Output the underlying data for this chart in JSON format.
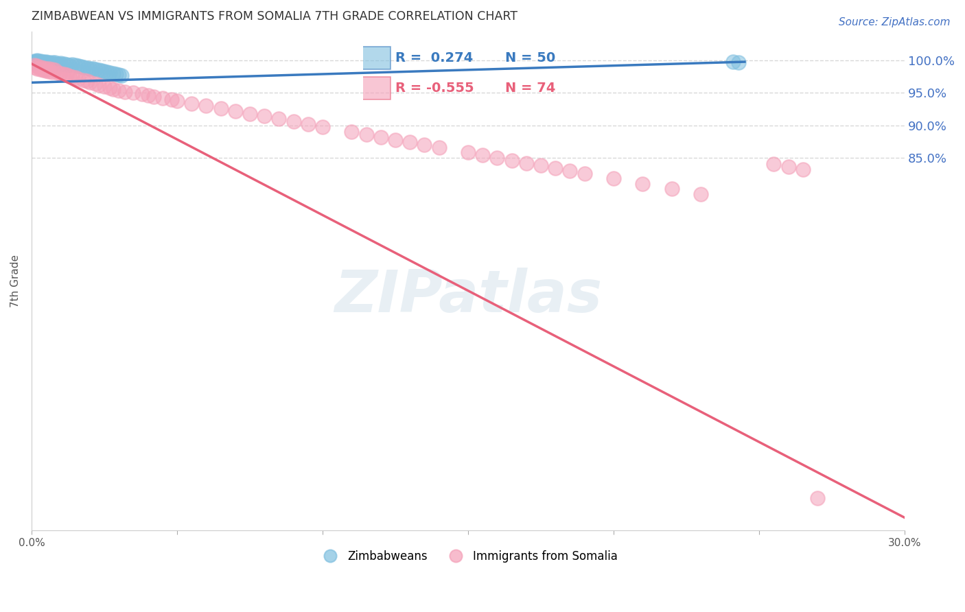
{
  "title": "ZIMBABWEAN VS IMMIGRANTS FROM SOMALIA 7TH GRADE CORRELATION CHART",
  "source": "Source: ZipAtlas.com",
  "ylabel": "7th Grade",
  "ytick_labels": [
    "100.0%",
    "95.0%",
    "90.0%",
    "85.0%"
  ],
  "ytick_values": [
    1.0,
    0.95,
    0.9,
    0.85
  ],
  "xmin": 0.0,
  "xmax": 0.3,
  "ymin": 0.275,
  "ymax": 1.045,
  "blue_color": "#7fbfdf",
  "pink_color": "#f4a0b8",
  "blue_line_color": "#3a7abf",
  "pink_line_color": "#e8607a",
  "R_blue": 0.274,
  "N_blue": 50,
  "R_pink": -0.555,
  "N_pink": 74,
  "blue_line_x": [
    0.0,
    0.245
  ],
  "blue_line_y": [
    0.966,
    0.998
  ],
  "pink_line_x": [
    0.0,
    0.3
  ],
  "pink_line_y": [
    0.995,
    0.295
  ],
  "blue_scatter_x": [
    0.001,
    0.001,
    0.001,
    0.001,
    0.002,
    0.002,
    0.002,
    0.002,
    0.003,
    0.003,
    0.003,
    0.003,
    0.004,
    0.004,
    0.004,
    0.005,
    0.005,
    0.005,
    0.006,
    0.006,
    0.007,
    0.007,
    0.008,
    0.008,
    0.009,
    0.01,
    0.01,
    0.011,
    0.012,
    0.013,
    0.014,
    0.015,
    0.016,
    0.017,
    0.018,
    0.019,
    0.02,
    0.021,
    0.022,
    0.023,
    0.024,
    0.025,
    0.026,
    0.027,
    0.028,
    0.029,
    0.03,
    0.031,
    0.241,
    0.243
  ],
  "blue_scatter_y": [
    0.999,
    0.998,
    0.997,
    0.996,
    1.0,
    0.999,
    0.998,
    0.997,
    0.999,
    0.998,
    0.997,
    0.996,
    0.998,
    0.997,
    0.996,
    0.998,
    0.997,
    0.996,
    0.997,
    0.996,
    0.997,
    0.995,
    0.997,
    0.994,
    0.995,
    0.996,
    0.994,
    0.995,
    0.994,
    0.993,
    0.994,
    0.993,
    0.992,
    0.991,
    0.99,
    0.989,
    0.988,
    0.987,
    0.986,
    0.985,
    0.984,
    0.983,
    0.982,
    0.981,
    0.98,
    0.979,
    0.978,
    0.977,
    0.998,
    0.997
  ],
  "pink_scatter_x": [
    0.001,
    0.001,
    0.002,
    0.002,
    0.003,
    0.003,
    0.004,
    0.004,
    0.005,
    0.005,
    0.006,
    0.006,
    0.007,
    0.007,
    0.008,
    0.009,
    0.01,
    0.011,
    0.012,
    0.013,
    0.014,
    0.015,
    0.016,
    0.018,
    0.019,
    0.02,
    0.022,
    0.023,
    0.025,
    0.027,
    0.028,
    0.03,
    0.032,
    0.035,
    0.038,
    0.04,
    0.042,
    0.045,
    0.048,
    0.05,
    0.055,
    0.06,
    0.065,
    0.07,
    0.075,
    0.08,
    0.085,
    0.09,
    0.095,
    0.1,
    0.11,
    0.115,
    0.12,
    0.125,
    0.13,
    0.135,
    0.14,
    0.15,
    0.155,
    0.16,
    0.165,
    0.17,
    0.175,
    0.18,
    0.185,
    0.19,
    0.2,
    0.21,
    0.22,
    0.23,
    0.255,
    0.26,
    0.265,
    0.27
  ],
  "pink_scatter_y": [
    0.993,
    0.99,
    0.992,
    0.988,
    0.99,
    0.986,
    0.989,
    0.985,
    0.988,
    0.984,
    0.987,
    0.983,
    0.986,
    0.982,
    0.985,
    0.981,
    0.98,
    0.979,
    0.978,
    0.976,
    0.975,
    0.974,
    0.972,
    0.97,
    0.968,
    0.966,
    0.964,
    0.962,
    0.96,
    0.958,
    0.956,
    0.954,
    0.952,
    0.95,
    0.948,
    0.946,
    0.944,
    0.942,
    0.94,
    0.938,
    0.934,
    0.93,
    0.926,
    0.922,
    0.918,
    0.914,
    0.91,
    0.906,
    0.902,
    0.898,
    0.89,
    0.886,
    0.882,
    0.878,
    0.874,
    0.87,
    0.866,
    0.858,
    0.854,
    0.85,
    0.846,
    0.842,
    0.838,
    0.834,
    0.83,
    0.826,
    0.818,
    0.81,
    0.802,
    0.794,
    0.84,
    0.836,
    0.832,
    0.325
  ],
  "watermark": "ZIPatlas",
  "background_color": "#ffffff",
  "grid_color": "#d8d8d8"
}
